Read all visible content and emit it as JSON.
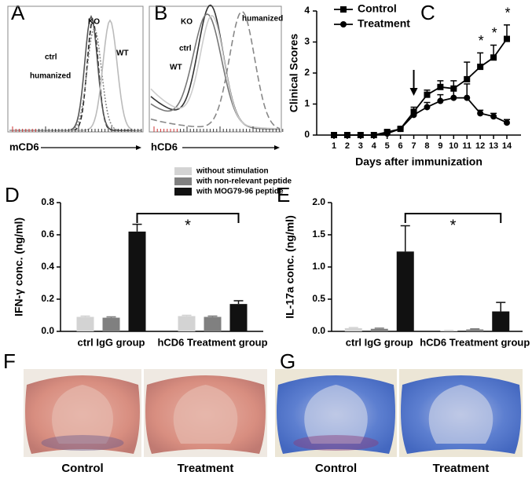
{
  "chart_data": [
    {
      "type": "flow",
      "panel": "A",
      "xlabel": "mCD6",
      "labels": [
        "KO",
        "ctrl",
        "humanized",
        "WT"
      ]
    },
    {
      "type": "flow",
      "panel": "B",
      "xlabel": "hCD6",
      "labels": [
        "KO",
        "ctrl",
        "WT",
        "humanized"
      ]
    },
    {
      "type": "line",
      "panel": "C",
      "xlabel": "Days after immunization",
      "ylabel": "Clinical Scores",
      "categories": [
        "1",
        "2",
        "3",
        "4",
        "5",
        "6",
        "7",
        "8",
        "9",
        "10",
        "11",
        "12",
        "13",
        "14"
      ],
      "ylim": [
        0,
        4
      ],
      "yticks": [
        0,
        1,
        2,
        3,
        4
      ],
      "series": [
        {
          "name": "Control",
          "marker": "square",
          "color": "#000000",
          "values": [
            0,
            0,
            0,
            0,
            0.1,
            0.2,
            0.75,
            1.3,
            1.55,
            1.5,
            1.8,
            2.2,
            2.5,
            3.1
          ],
          "errors": [
            0,
            0,
            0,
            0,
            0.05,
            0.05,
            0.15,
            0.15,
            0.2,
            0.25,
            0.55,
            0.45,
            0.4,
            0.45
          ]
        },
        {
          "name": "Treatment",
          "marker": "circle",
          "color": "#000000",
          "values": [
            0,
            0,
            0,
            0,
            0.05,
            0.2,
            0.65,
            0.9,
            1.1,
            1.2,
            1.2,
            0.7,
            0.6,
            0.4
          ],
          "errors": [
            0,
            0,
            0,
            0,
            0.03,
            0.05,
            0.15,
            0.15,
            0.2,
            0.3,
            0.45,
            0.1,
            0.1,
            0.1
          ]
        }
      ],
      "annotations": [
        {
          "text": "*",
          "category": "12"
        },
        {
          "text": "*",
          "category": "13"
        },
        {
          "text": "*",
          "category": "14"
        }
      ]
    },
    {
      "type": "bar",
      "panel": "D",
      "ylabel": "IFN-γ conc. (ng/ml)",
      "categories": [
        "ctrl IgG group",
        "hCD6 Treatment group"
      ],
      "ylim": [
        0,
        0.8
      ],
      "yticks": [
        {
          "value": 0,
          "label": "0.0"
        },
        0.2,
        0.4,
        0.6,
        0.8
      ],
      "series": [
        {
          "name": "without stimulation",
          "color": "#d3d3d3",
          "values": [
            0.09,
            0.095
          ],
          "errors": [
            0.005,
            0.005
          ]
        },
        {
          "name": "with non-relevant peptide",
          "color": "#808080",
          "values": [
            0.085,
            0.09
          ],
          "errors": [
            0.005,
            0.005
          ]
        },
        {
          "name": "with MOG79-96 peptide",
          "color": "#111111",
          "values": [
            0.62,
            0.17
          ],
          "errors": [
            0.045,
            0.02
          ]
        }
      ],
      "annotation": "*"
    },
    {
      "type": "bar",
      "panel": "E",
      "ylabel": "IL-17a conc. (ng/ml)",
      "categories": [
        "ctrl IgG group",
        "hCD6 Treatment group"
      ],
      "ylim": [
        0,
        2
      ],
      "yticks": [
        {
          "value": 0,
          "label": "0.0"
        },
        0.5,
        {
          "value": 1,
          "label": "1.0"
        },
        1.5,
        {
          "value": 2,
          "label": "2.0"
        }
      ],
      "series": [
        {
          "color": "#d3d3d3",
          "values": [
            0.05,
            0.01
          ],
          "errors": [
            0.01,
            0.005
          ]
        },
        {
          "color": "#808080",
          "values": [
            0.04,
            0.03
          ],
          "errors": [
            0.01,
            0.01
          ]
        },
        {
          "color": "#111111",
          "values": [
            1.24,
            0.31
          ],
          "errors": [
            0.4,
            0.14
          ]
        }
      ],
      "annotation": "*"
    },
    {
      "type": "image",
      "panel": "F",
      "stain": "he",
      "labels": [
        "Control",
        "Treatment"
      ]
    },
    {
      "type": "image",
      "panel": "G",
      "stain": "lfb",
      "labels": [
        "Control",
        "Treatment"
      ]
    }
  ]
}
